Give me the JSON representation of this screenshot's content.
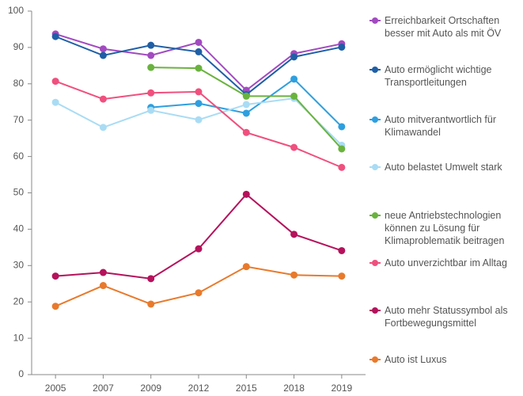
{
  "chart_data": {
    "type": "line",
    "categories": [
      "2005",
      "2007",
      "2009",
      "2012",
      "2015",
      "2018",
      "2019"
    ],
    "ylim": [
      0,
      100
    ],
    "yticks": [
      0,
      10,
      20,
      30,
      40,
      50,
      60,
      70,
      80,
      90,
      100
    ],
    "grid": false,
    "legend": "right",
    "series": [
      {
        "name": "Erreichbarkeit Ortschaften besser mit Auto als mit ÖV",
        "color": "#a24ac0",
        "values": [
          93.7,
          89.6,
          87.8,
          91.4,
          78.2,
          88.3,
          91.0
        ]
      },
      {
        "name": "Auto ermöglicht wichtige Transportleitungen",
        "color": "#1f5fa6",
        "values": [
          93.0,
          87.8,
          90.6,
          88.8,
          77.0,
          87.4,
          90.1
        ]
      },
      {
        "name": "Auto mitverantwortlich für Klimawandel",
        "color": "#2e9fdf",
        "values": [
          null,
          null,
          73.5,
          74.6,
          71.9,
          81.3,
          68.2
        ]
      },
      {
        "name": "Auto belastet Umwelt stark",
        "color": "#a9dcf4",
        "values": [
          74.9,
          68.0,
          72.7,
          70.1,
          74.3,
          76.0,
          63.1
        ]
      },
      {
        "name": "neue Antriebstechnologien können zu Lösung für Klimaproblematik beitragen",
        "color": "#6ab33e",
        "values": [
          null,
          null,
          84.5,
          84.3,
          76.6,
          76.6,
          62.1
        ]
      },
      {
        "name": "Auto unverzichtbar im Alltag",
        "color": "#f0507e",
        "values": [
          80.7,
          75.8,
          77.5,
          77.8,
          66.6,
          62.5,
          57.0
        ]
      },
      {
        "name": "Auto mehr Statussymbol als Fortbewegungsmittel",
        "color": "#b5125c",
        "values": [
          27.1,
          28.1,
          26.4,
          34.6,
          49.6,
          38.6,
          34.1
        ]
      },
      {
        "name": "Auto ist Luxus",
        "color": "#e87a2c",
        "values": [
          18.8,
          24.5,
          19.4,
          22.5,
          29.7,
          27.4,
          27.1
        ]
      }
    ]
  }
}
